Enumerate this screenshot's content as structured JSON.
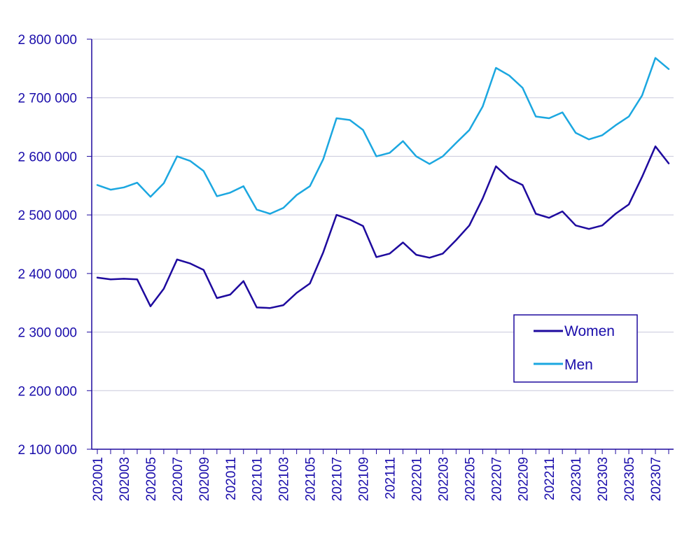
{
  "chart_data": {
    "type": "line",
    "title": "",
    "xlabel": "",
    "ylabel": "",
    "ylim": [
      2100000,
      2800000
    ],
    "yticks": [
      2100000,
      2200000,
      2300000,
      2400000,
      2500000,
      2600000,
      2700000,
      2800000
    ],
    "ytick_labels": [
      "2 100 000",
      "2 200 000",
      "2 300 000",
      "2 400 000",
      "2 500 000",
      "2 600 000",
      "2 700 000",
      "2 800 000"
    ],
    "grid": true,
    "legend_position": "lower-right",
    "x": [
      "202001",
      "202002",
      "202003",
      "202004",
      "202005",
      "202006",
      "202007",
      "202008",
      "202009",
      "202010",
      "202011",
      "202012",
      "202101",
      "202102",
      "202103",
      "202104",
      "202105",
      "202106",
      "202107",
      "202108",
      "202109",
      "202110",
      "202111",
      "202112",
      "202201",
      "202202",
      "202203",
      "202204",
      "202205",
      "202206",
      "202207",
      "202208",
      "202209",
      "202210",
      "202211",
      "202212",
      "202301",
      "202302",
      "202303",
      "202304",
      "202305",
      "202306",
      "202307",
      "202308"
    ],
    "x_tick_labels": [
      "202001",
      "202003",
      "202005",
      "202007",
      "202009",
      "202011",
      "202101",
      "202103",
      "202105",
      "202107",
      "202109",
      "202111",
      "202201",
      "202203",
      "202205",
      "202207",
      "202209",
      "202211",
      "202301",
      "202303",
      "202305",
      "202307"
    ],
    "series": [
      {
        "name": "Women",
        "color": "#1e0a9e",
        "values": [
          2393000,
          2390000,
          2391000,
          2390000,
          2344000,
          2374000,
          2424000,
          2417000,
          2406000,
          2358000,
          2364000,
          2387000,
          2342000,
          2341000,
          2346000,
          2367000,
          2383000,
          2436000,
          2500000,
          2492000,
          2481000,
          2428000,
          2434000,
          2453000,
          2432000,
          2427000,
          2434000,
          2457000,
          2482000,
          2528000,
          2583000,
          2562000,
          2551000,
          2502000,
          2495000,
          2506000,
          2482000,
          2476000,
          2482000,
          2502000,
          2518000,
          2565000,
          2617000,
          2588000
        ]
      },
      {
        "name": "Men",
        "color": "#1ba7e0",
        "values": [
          2551000,
          2543000,
          2547000,
          2555000,
          2531000,
          2554000,
          2600000,
          2592000,
          2575000,
          2532000,
          2538000,
          2549000,
          2509000,
          2502000,
          2512000,
          2534000,
          2549000,
          2595000,
          2665000,
          2662000,
          2645000,
          2600000,
          2606000,
          2626000,
          2600000,
          2587000,
          2600000,
          2623000,
          2645000,
          2685000,
          2751000,
          2738000,
          2717000,
          2668000,
          2665000,
          2675000,
          2640000,
          2629000,
          2636000,
          2653000,
          2668000,
          2704000,
          2768000,
          2749000
        ]
      }
    ]
  },
  "colors": {
    "text": "#1a0dab",
    "axis": "#1e0a9e",
    "grid": "#c8c8dc"
  }
}
